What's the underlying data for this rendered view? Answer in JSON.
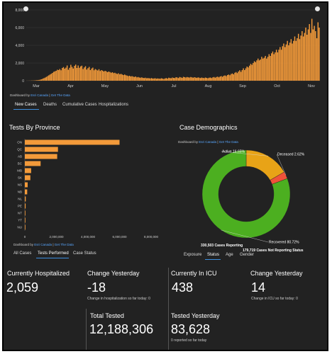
{
  "colors": {
    "bar": "#f39a3a",
    "background": "#222222",
    "recovered": "#4caf20",
    "active": "#e8a317",
    "deceased": "#f0523a",
    "link": "#5aa7ff"
  },
  "top_chart": {
    "credit_prefix": "Dashboard by",
    "credit_source": "Esri Canada",
    "credit_sep": "|",
    "credit_data": "Get The Data",
    "tabs": [
      {
        "label": "New Cases",
        "active": true
      },
      {
        "label": "Deaths",
        "active": false
      },
      {
        "label": "Cumulative Cases",
        "active": false
      },
      {
        "label": "Hospitalizations",
        "active": false
      }
    ]
  },
  "province_chart": {
    "title": "Tests By Province",
    "credit_prefix": "Dashboard by",
    "credit_source": "Esri Canada",
    "credit_sep": "|",
    "credit_data": "Get The Data",
    "tabs": [
      {
        "label": "All Cases",
        "active": false
      },
      {
        "label": "Tests Performed",
        "active": true
      },
      {
        "label": "Case Status",
        "active": false
      }
    ]
  },
  "demographics": {
    "title": "Case Demographics",
    "credit_prefix": "Dashboard by",
    "credit_source": "Esri Canada",
    "credit_sep": "|",
    "credit_data": "Get The Data",
    "cases_reporting": "330,503 Cases Reporting",
    "cases_not_reporting": "179,719 Cases Not Reporting Status",
    "tabs": [
      {
        "label": "Exposure",
        "active": false
      },
      {
        "label": "Status",
        "active": true
      },
      {
        "label": "Age",
        "active": false
      },
      {
        "label": "Gender",
        "active": false
      }
    ]
  },
  "stats": {
    "hospitalized_label": "Currently Hospitalized",
    "hospitalized_value": "2,059",
    "hosp_change_label": "Change Yesterday",
    "hosp_change_value": "-18",
    "hosp_change_note": "Change in hospitalization so far today: 0",
    "icu_label": "Currently In ICU",
    "icu_value": "438",
    "icu_change_label": "Change Yesterday",
    "icu_change_value": "14",
    "icu_change_note": "Change in ICU so far today: 0",
    "tested_label": "Total Tested",
    "tested_value": "12,188,306",
    "tested_yesterday_label": "Tested Yesterday",
    "tested_yesterday_value": "83,628",
    "tested_yesterday_note": "0 reported so far today"
  },
  "chart_data": [
    {
      "type": "bar",
      "name": "daily-new-cases",
      "ylim": [
        0,
        8000
      ],
      "yticks": [
        0,
        2000,
        4000,
        6000,
        8000
      ],
      "ytick_labels": [
        "0",
        "2,000",
        "4,000",
        "6,000",
        "8,000"
      ],
      "xtick_labels": [
        "Mar",
        "Apr",
        "May",
        "Jun",
        "Jul",
        "Aug",
        "Sep",
        "Oct",
        "Nov"
      ],
      "values": [
        5,
        5,
        10,
        10,
        20,
        20,
        30,
        40,
        55,
        65,
        90,
        120,
        160,
        230,
        290,
        350,
        430,
        520,
        610,
        700,
        780,
        880,
        1000,
        1060,
        1120,
        1240,
        1200,
        1320,
        1180,
        1440,
        1540,
        1360,
        1480,
        1720,
        1240,
        1460,
        1800,
        1560,
        1380,
        1680,
        1820,
        1440,
        1720,
        1460,
        1620,
        1700,
        1320,
        1500,
        1640,
        1260,
        1420,
        1560,
        1200,
        1380,
        1480,
        1180,
        1320,
        1240,
        1160,
        1300,
        1100,
        1200,
        1140,
        1040,
        1120,
        1060,
        960,
        1040,
        980,
        900,
        960,
        860,
        900,
        820,
        760,
        840,
        720,
        780,
        700,
        640,
        700,
        620,
        580,
        520,
        560,
        480,
        520,
        460,
        420,
        480,
        380,
        420,
        360,
        340,
        380,
        320,
        300,
        340,
        280,
        300,
        280,
        260,
        300,
        240,
        260,
        280,
        220,
        260,
        240,
        220,
        280,
        240,
        200,
        260,
        300,
        240,
        340,
        300,
        280,
        360,
        320,
        300,
        400,
        360,
        300,
        420,
        380,
        320,
        440,
        400,
        360,
        420,
        380,
        360,
        420,
        380,
        340,
        400,
        360,
        320,
        380,
        340,
        300,
        360,
        320,
        300,
        360,
        320,
        280,
        340,
        360,
        300,
        380,
        420,
        340,
        420,
        460,
        380,
        480,
        520,
        440,
        560,
        600,
        520,
        640,
        700,
        620,
        760,
        820,
        720,
        900,
        980,
        860,
        1040,
        1180,
        1000,
        1200,
        1400,
        1200,
        1400,
        1600,
        1500,
        1700,
        1900,
        1800,
        2000,
        2200,
        2100,
        2300,
        2500,
        2300,
        2400,
        2700,
        2500,
        2600,
        2800,
        2500,
        2700,
        3000,
        2800,
        3100,
        3300,
        3000,
        3200,
        3500,
        3200,
        3500,
        3800,
        3500,
        3900,
        4200,
        3800,
        4100,
        4500,
        4000,
        4300,
        4700,
        4200,
        4500,
        5000,
        4500,
        4800,
        5300,
        4700,
        5100,
        5600,
        5000,
        5400,
        6000,
        5200,
        5800,
        6400,
        5400,
        7000,
        5800,
        6200,
        5600,
        4800,
        6600,
        6000
      ]
    },
    {
      "type": "bar",
      "name": "tests-by-province",
      "orientation": "horizontal",
      "categories": [
        "ON",
        "QC",
        "AB",
        "BC",
        "MB",
        "SK",
        "NS",
        "NB",
        "NL",
        "PE",
        "NT",
        "YT",
        "NU"
      ],
      "values": [
        6000000,
        2100000,
        2050000,
        1000000,
        400000,
        350000,
        180000,
        150000,
        60000,
        50000,
        10000,
        8000,
        7000
      ],
      "xlim": [
        0,
        8000000
      ],
      "xticks": [
        0,
        2000000,
        4000000,
        6000000,
        8000000
      ],
      "xtick_labels": [
        "0",
        "2,000,000",
        "4,000,000",
        "6,000,000",
        "8,000,000"
      ]
    },
    {
      "type": "pie",
      "name": "case-status",
      "donut": true,
      "slices": [
        {
          "label": "Recovered 80.72%",
          "value": 80.72
        },
        {
          "label": "Active 16.65%",
          "value": 16.65
        },
        {
          "label": "Deceased 2.62%",
          "value": 2.62
        }
      ]
    }
  ]
}
